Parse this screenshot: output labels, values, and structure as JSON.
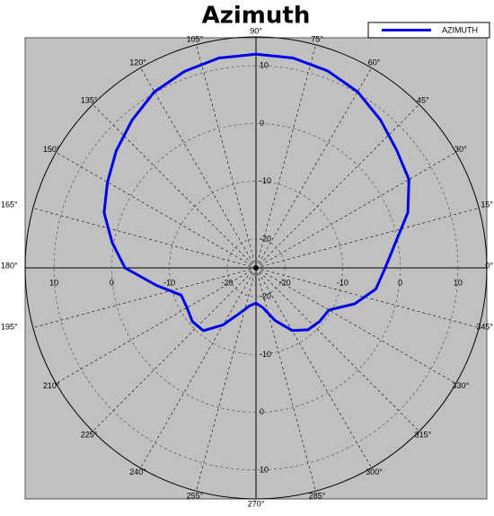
{
  "chart_data": {
    "type": "polar",
    "title": "Azimuth",
    "legend": "upper right",
    "series": [
      {
        "name": "AZIMUTH",
        "color": "#0000e6",
        "x": [
          0,
          10,
          20,
          30,
          40,
          50,
          60,
          70,
          80,
          90,
          100,
          110,
          120,
          130,
          140,
          150,
          160,
          170,
          180,
          190,
          200,
          210,
          220,
          230,
          240,
          250,
          260,
          270,
          280,
          290,
          300,
          310,
          320,
          330,
          340,
          350
        ],
        "values": [
          -2.6,
          -0.5,
          3.0,
          5.6,
          6.8,
          8.5,
          10.2,
          11.3,
          11.9,
          12.0,
          11.9,
          11.2,
          10.2,
          8.4,
          6.6,
          4.7,
          3.0,
          0.3,
          -2.3,
          -7.5,
          -11.2,
          -11.2,
          -10.6,
          -10.8,
          -13.6,
          -16.6,
          -18.3,
          -18.9,
          -18.0,
          -15.3,
          -12.5,
          -11.0,
          -10.6,
          -10.4,
          -6.8,
          -3.9
        ]
      }
    ],
    "rlim": [
      -25,
      15
    ],
    "rticks": [
      -20,
      -10,
      0,
      10
    ],
    "thetaticks": [
      {
        "value": 0,
        "label": "0°"
      },
      {
        "value": 15,
        "label": "15°"
      },
      {
        "value": 30,
        "label": "30°"
      },
      {
        "value": 45,
        "label": "45°"
      },
      {
        "value": 60,
        "label": "60°"
      },
      {
        "value": 75,
        "label": "75°"
      },
      {
        "value": 90,
        "label": "90°"
      },
      {
        "value": 105,
        "label": "105°"
      },
      {
        "value": 120,
        "label": "120°"
      },
      {
        "value": 135,
        "label": "135°"
      },
      {
        "value": 150,
        "label": "150°"
      },
      {
        "value": 165,
        "label": "165°"
      },
      {
        "value": 180,
        "label": "180°"
      },
      {
        "value": 195,
        "label": "195°"
      },
      {
        "value": 210,
        "label": "210°"
      },
      {
        "value": 225,
        "label": "225°"
      },
      {
        "value": 240,
        "label": "240°"
      },
      {
        "value": 255,
        "label": "255°"
      },
      {
        "value": 270,
        "label": "270°"
      },
      {
        "value": 285,
        "label": "285°"
      },
      {
        "value": 300,
        "label": "300°"
      },
      {
        "value": 315,
        "label": "315°"
      },
      {
        "value": 330,
        "label": "330°"
      },
      {
        "value": 345,
        "label": "345°"
      }
    ],
    "grid": true
  }
}
